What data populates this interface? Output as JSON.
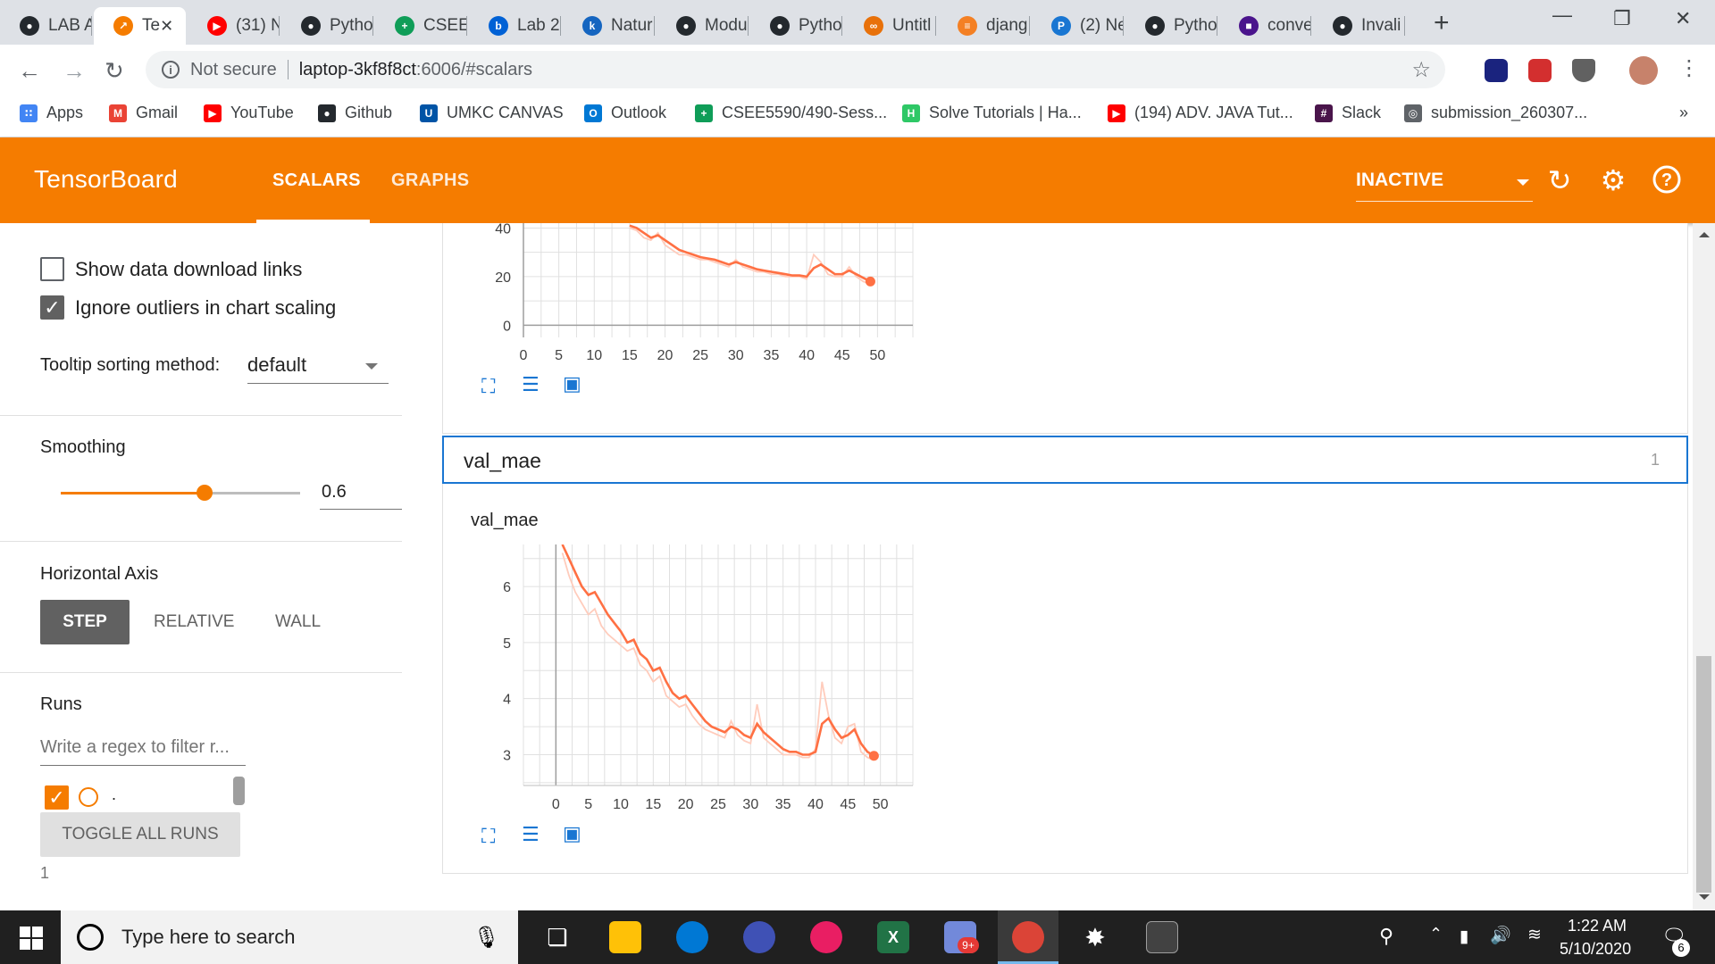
{
  "browser": {
    "tabs": [
      {
        "title": "LAB A",
        "icon": "github-icon",
        "color": "#24292e"
      },
      {
        "title": "Te",
        "icon": "tensorboard-icon",
        "color": "#f57c00",
        "active": true
      },
      {
        "title": "(31) N",
        "icon": "youtube-icon",
        "color": "#ff0000"
      },
      {
        "title": "Pytho",
        "icon": "github-icon",
        "color": "#24292e"
      },
      {
        "title": "CSEE",
        "icon": "sheets-icon",
        "color": "#0f9d58"
      },
      {
        "title": "Lab 2",
        "icon": "box-icon",
        "color": "#0061d5"
      },
      {
        "title": "Natur",
        "icon": "k-icon",
        "color": "#1565c0"
      },
      {
        "title": "Modu",
        "icon": "github-icon",
        "color": "#24292e"
      },
      {
        "title": "Pytho",
        "icon": "github-icon",
        "color": "#24292e"
      },
      {
        "title": "Untitl",
        "icon": "colab-icon",
        "color": "#e8710a"
      },
      {
        "title": "djang",
        "icon": "stackoverflow-icon",
        "color": "#f48024"
      },
      {
        "title": "(2) Ne",
        "icon": "p-icon",
        "color": "#1976d2"
      },
      {
        "title": "Pytho",
        "icon": "github-icon",
        "color": "#24292e"
      },
      {
        "title": "conve",
        "icon": "app-icon",
        "color": "#4a148c"
      },
      {
        "title": "Invali",
        "icon": "github-icon",
        "color": "#24292e"
      }
    ],
    "new_tab": "+",
    "address": {
      "security": "Not secure",
      "host": "laptop-3kf8f8ct",
      "path": ":6006/#scalars"
    },
    "bookmarks": [
      {
        "label": "Apps",
        "icon": "apps-icon",
        "color": "#4285f4"
      },
      {
        "label": "Gmail",
        "icon": "gmail-icon",
        "color": "#ea4335"
      },
      {
        "label": "YouTube",
        "icon": "youtube-icon",
        "color": "#ff0000"
      },
      {
        "label": "Github",
        "icon": "github-icon",
        "color": "#24292e"
      },
      {
        "label": "UMKC CANVAS",
        "icon": "umkc-icon",
        "color": "#0054a6"
      },
      {
        "label": "Outlook",
        "icon": "outlook-icon",
        "color": "#0078d4"
      },
      {
        "label": "CSEE5590/490-Sess...",
        "icon": "sheets-icon",
        "color": "#0f9d58"
      },
      {
        "label": "Solve Tutorials | Ha...",
        "icon": "hackerrank-icon",
        "color": "#2ec866"
      },
      {
        "label": "(194) ADV. JAVA Tut...",
        "icon": "youtube-icon",
        "color": "#ff0000"
      },
      {
        "label": "Slack",
        "icon": "slack-icon",
        "color": "#4a154b"
      },
      {
        "label": "submission_260307...",
        "icon": "globe-icon",
        "color": "#5f6368"
      }
    ],
    "bookmarks_more": "»"
  },
  "tensorboard": {
    "title": "TensorBoard",
    "tabs": [
      "SCALARS",
      "GRAPHS"
    ],
    "active_tab": "SCALARS",
    "status": "INACTIVE",
    "accent": "#f57c00"
  },
  "sidebar": {
    "show_download_links": "Show data download links",
    "ignore_outliers": "Ignore outliers in chart scaling",
    "tooltip_label": "Tooltip sorting method:",
    "tooltip_value": "default",
    "smoothing_label": "Smoothing",
    "smoothing_value": "0.6",
    "smoothing_fraction": 0.6,
    "horizontal_axis_label": "Horizontal Axis",
    "axis_options": [
      "STEP",
      "RELATIVE",
      "WALL"
    ],
    "axis_selected": "STEP",
    "runs_label": "Runs",
    "runs_filter_placeholder": "Write a regex to filter r...",
    "run_name": ".",
    "toggle_all": "TOGGLE ALL RUNS",
    "footer_count": "1"
  },
  "main": {
    "group_name": "val_mae",
    "group_count": "1"
  },
  "chart_data": [
    {
      "type": "line",
      "title": "",
      "xlabel": "",
      "ylabel": "",
      "x_ticks": [
        "0",
        "5",
        "10",
        "15",
        "20",
        "25",
        "30",
        "35",
        "40",
        "45",
        "50"
      ],
      "y_ticks": [
        "0",
        "20",
        "40"
      ],
      "xlim": [
        0,
        55
      ],
      "ylim": [
        -5,
        42
      ],
      "grid": true,
      "series": [
        {
          "smoothed": true,
          "color": "#ff7043",
          "x": [
            15,
            16,
            17,
            18,
            19,
            20,
            21,
            22,
            23,
            24,
            25,
            26,
            27,
            28,
            29,
            30,
            31,
            32,
            33,
            34,
            35,
            36,
            37,
            38,
            39,
            40,
            41,
            42,
            43,
            44,
            45,
            46,
            47,
            48,
            49
          ],
          "y": [
            41,
            40,
            38,
            36,
            37,
            35,
            33,
            31,
            30,
            29,
            28,
            27.5,
            27,
            26,
            25,
            26,
            25,
            24,
            23,
            22.5,
            22,
            21.5,
            21,
            20.5,
            20.5,
            20,
            23.5,
            25,
            23,
            21,
            21,
            22.5,
            21,
            19.5,
            18
          ]
        },
        {
          "raw": true,
          "color": "#ffccbc",
          "x": [
            15,
            16,
            17,
            18,
            19,
            20,
            21,
            22,
            23,
            24,
            25,
            26,
            27,
            28,
            29,
            30,
            31,
            32,
            33,
            34,
            35,
            36,
            37,
            38,
            39,
            40,
            41,
            42,
            43,
            44,
            45,
            46,
            47,
            48,
            49
          ],
          "y": [
            40,
            39,
            36,
            35,
            38,
            33,
            31,
            29,
            29,
            28,
            27,
            27,
            26,
            25,
            24,
            27,
            24,
            23,
            22,
            22,
            21,
            21,
            20,
            20,
            20,
            19,
            29,
            26,
            21,
            20,
            20,
            24,
            20,
            18,
            17
          ]
        }
      ]
    },
    {
      "type": "line",
      "title": "val_mae",
      "xlabel": "",
      "ylabel": "",
      "x_ticks": [
        "0",
        "5",
        "10",
        "15",
        "20",
        "25",
        "30",
        "35",
        "40",
        "45",
        "50"
      ],
      "y_ticks": [
        "3",
        "4",
        "5",
        "6"
      ],
      "xlim": [
        -5,
        55
      ],
      "ylim": [
        2.45,
        6.75
      ],
      "grid": true,
      "series": [
        {
          "smoothed": true,
          "color": "#ff7043",
          "x": [
            1,
            2,
            3,
            4,
            5,
            6,
            7,
            8,
            9,
            10,
            11,
            12,
            13,
            14,
            15,
            16,
            17,
            18,
            19,
            20,
            21,
            22,
            23,
            24,
            25,
            26,
            27,
            28,
            29,
            30,
            31,
            32,
            33,
            34,
            35,
            36,
            37,
            38,
            39,
            40,
            41,
            42,
            43,
            44,
            45,
            46,
            47,
            48,
            49
          ],
          "y": [
            6.75,
            6.5,
            6.25,
            6.0,
            5.85,
            5.9,
            5.7,
            5.5,
            5.35,
            5.2,
            5.0,
            5.05,
            4.8,
            4.7,
            4.5,
            4.55,
            4.3,
            4.1,
            4.0,
            4.05,
            3.9,
            3.75,
            3.6,
            3.5,
            3.45,
            3.4,
            3.5,
            3.45,
            3.35,
            3.3,
            3.55,
            3.4,
            3.3,
            3.2,
            3.1,
            3.05,
            3.05,
            3.0,
            3.0,
            3.05,
            3.55,
            3.65,
            3.45,
            3.3,
            3.35,
            3.45,
            3.2,
            3.05,
            2.98
          ]
        },
        {
          "raw": true,
          "color": "#ffccbc",
          "x": [
            1,
            2,
            3,
            4,
            5,
            6,
            7,
            8,
            9,
            10,
            11,
            12,
            13,
            14,
            15,
            16,
            17,
            18,
            19,
            20,
            21,
            22,
            23,
            24,
            25,
            26,
            27,
            28,
            29,
            30,
            31,
            32,
            33,
            34,
            35,
            36,
            37,
            38,
            39,
            40,
            41,
            42,
            43,
            44,
            45,
            46,
            47,
            48,
            49
          ],
          "y": [
            6.6,
            6.2,
            5.9,
            5.7,
            5.5,
            5.6,
            5.3,
            5.15,
            5.05,
            4.95,
            4.85,
            4.9,
            4.6,
            4.5,
            4.3,
            4.4,
            4.05,
            3.95,
            3.85,
            3.9,
            3.7,
            3.55,
            3.45,
            3.4,
            3.35,
            3.3,
            3.6,
            3.35,
            3.25,
            3.2,
            3.9,
            3.3,
            3.2,
            3.1,
            3.0,
            3.0,
            3.0,
            2.95,
            2.95,
            3.1,
            4.3,
            3.7,
            3.3,
            3.2,
            3.5,
            3.55,
            3.05,
            2.95,
            2.9
          ]
        }
      ]
    }
  ],
  "taskbar": {
    "search_placeholder": "Type here to search",
    "time": "1:22 AM",
    "date": "5/10/2020",
    "notifications": "6",
    "discord_badge": "9+"
  }
}
